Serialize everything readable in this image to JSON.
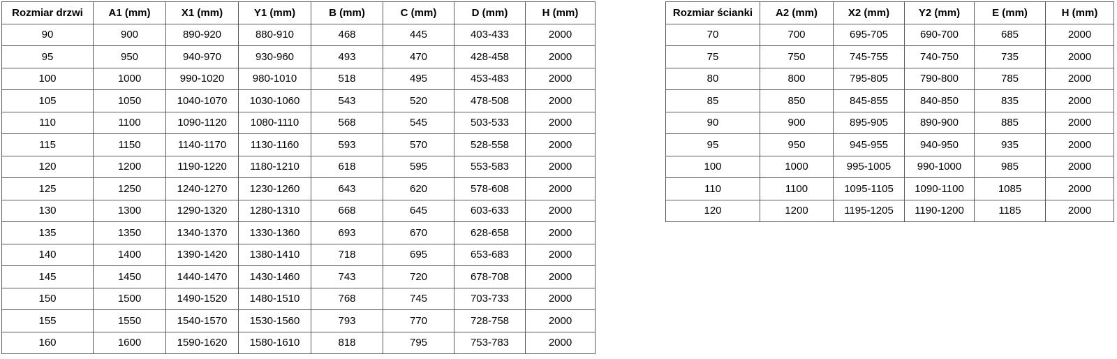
{
  "colors": {
    "background": "#ffffff",
    "border": "#595959",
    "text": "#000000"
  },
  "tables": [
    {
      "name": "door-sizes",
      "headers": [
        "Rozmiar drzwi",
        "A1 (mm)",
        "X1 (mm)",
        "Y1 (mm)",
        "B (mm)",
        "C (mm)",
        "D (mm)",
        "H (mm)"
      ],
      "rows": [
        [
          "90",
          "900",
          "890-920",
          "880-910",
          "468",
          "445",
          "403-433",
          "2000"
        ],
        [
          "95",
          "950",
          "940-970",
          "930-960",
          "493",
          "470",
          "428-458",
          "2000"
        ],
        [
          "100",
          "1000",
          "990-1020",
          "980-1010",
          "518",
          "495",
          "453-483",
          "2000"
        ],
        [
          "105",
          "1050",
          "1040-1070",
          "1030-1060",
          "543",
          "520",
          "478-508",
          "2000"
        ],
        [
          "110",
          "1100",
          "1090-1120",
          "1080-1110",
          "568",
          "545",
          "503-533",
          "2000"
        ],
        [
          "115",
          "1150",
          "1140-1170",
          "1130-1160",
          "593",
          "570",
          "528-558",
          "2000"
        ],
        [
          "120",
          "1200",
          "1190-1220",
          "1180-1210",
          "618",
          "595",
          "553-583",
          "2000"
        ],
        [
          "125",
          "1250",
          "1240-1270",
          "1230-1260",
          "643",
          "620",
          "578-608",
          "2000"
        ],
        [
          "130",
          "1300",
          "1290-1320",
          "1280-1310",
          "668",
          "645",
          "603-633",
          "2000"
        ],
        [
          "135",
          "1350",
          "1340-1370",
          "1330-1360",
          "693",
          "670",
          "628-658",
          "2000"
        ],
        [
          "140",
          "1400",
          "1390-1420",
          "1380-1410",
          "718",
          "695",
          "653-683",
          "2000"
        ],
        [
          "145",
          "1450",
          "1440-1470",
          "1430-1460",
          "743",
          "720",
          "678-708",
          "2000"
        ],
        [
          "150",
          "1500",
          "1490-1520",
          "1480-1510",
          "768",
          "745",
          "703-733",
          "2000"
        ],
        [
          "155",
          "1550",
          "1540-1570",
          "1530-1560",
          "793",
          "770",
          "728-758",
          "2000"
        ],
        [
          "160",
          "1600",
          "1590-1620",
          "1580-1610",
          "818",
          "795",
          "753-783",
          "2000"
        ]
      ]
    },
    {
      "name": "wall-sizes",
      "headers": [
        "Rozmiar ścianki",
        "A2 (mm)",
        "X2 (mm)",
        "Y2 (mm)",
        "E (mm)",
        "H (mm)"
      ],
      "rows": [
        [
          "70",
          "700",
          "695-705",
          "690-700",
          "685",
          "2000"
        ],
        [
          "75",
          "750",
          "745-755",
          "740-750",
          "735",
          "2000"
        ],
        [
          "80",
          "800",
          "795-805",
          "790-800",
          "785",
          "2000"
        ],
        [
          "85",
          "850",
          "845-855",
          "840-850",
          "835",
          "2000"
        ],
        [
          "90",
          "900",
          "895-905",
          "890-900",
          "885",
          "2000"
        ],
        [
          "95",
          "950",
          "945-955",
          "940-950",
          "935",
          "2000"
        ],
        [
          "100",
          "1000",
          "995-1005",
          "990-1000",
          "985",
          "2000"
        ],
        [
          "110",
          "1100",
          "1095-1105",
          "1090-1100",
          "1085",
          "2000"
        ],
        [
          "120",
          "1200",
          "1195-1205",
          "1190-1200",
          "1185",
          "2000"
        ]
      ]
    }
  ]
}
